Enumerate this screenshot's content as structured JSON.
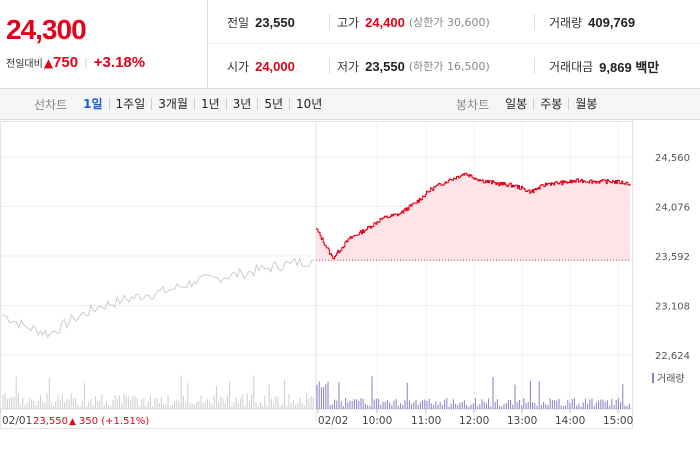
{
  "quote": {
    "price": "24,300",
    "change_label": "전일대비",
    "change_arrow": "▲",
    "change_amount": "750",
    "change_pct": "+3.18%"
  },
  "stats": {
    "prev_close_label": "전일",
    "prev_close": "23,550",
    "high_label": "고가",
    "high": "24,400",
    "upper_limit": "(상한가 30,600)",
    "volume_label": "거래량",
    "volume": "409,769",
    "open_label": "시가",
    "open": "24,000",
    "low_label": "저가",
    "low": "23,550",
    "lower_limit": "(하한가 16,500)",
    "amount_label": "거래대금",
    "amount": "9,869 백만"
  },
  "toolbar": {
    "line_chart_label": "선차트",
    "line_ranges": [
      "1일",
      "1주일",
      "3개월",
      "1년",
      "3년",
      "5년",
      "10년"
    ],
    "active_range": "1일",
    "candle_chart_label": "봉차트",
    "candle_ranges": [
      "일봉",
      "주봉",
      "월봉"
    ]
  },
  "chart_data": {
    "type": "line",
    "colors": {
      "today": "#e3001b",
      "today_fill": "#fde4e6",
      "previous": "#cccccc",
      "volume_prev": "#cccccc",
      "volume_today": "#8e7cc3"
    },
    "y_ticks": [
      "24,560",
      "24,076",
      "23,592",
      "23,108",
      "22,624"
    ],
    "y_tick_values": [
      24560,
      24076,
      23592,
      23108,
      22624
    ],
    "ylim": [
      22624,
      24560
    ],
    "x_ticks": [
      "02/01",
      "02/02",
      "10:00",
      "11:00",
      "12:00",
      "13:00",
      "14:00",
      "15:00"
    ],
    "reference_line": 23550,
    "volume_legend": "거래량",
    "prev_day_summary": {
      "date": "02/01",
      "price": "23,550",
      "arrow": "▲",
      "change": "350",
      "pct": "(+1.51%)"
    },
    "series": [
      {
        "day": "02/01",
        "x": [
          "09:00",
          "09:30",
          "10:00",
          "10:30",
          "11:00",
          "11:30",
          "12:00",
          "12:30",
          "13:00",
          "13:30",
          "14:00",
          "14:30",
          "15:00",
          "15:30"
        ],
        "values": [
          23020,
          22900,
          22830,
          22980,
          23090,
          23160,
          23210,
          23260,
          23340,
          23380,
          23420,
          23470,
          23520,
          23550
        ]
      },
      {
        "day": "02/02",
        "x": [
          "09:00",
          "09:20",
          "09:40",
          "10:00",
          "10:20",
          "10:40",
          "11:00",
          "11:20",
          "11:40",
          "12:00",
          "12:20",
          "12:40",
          "13:00",
          "13:20",
          "13:40",
          "14:00",
          "14:20",
          "14:40",
          "15:00",
          "15:20"
        ],
        "values": [
          23860,
          23570,
          23760,
          23850,
          23960,
          24000,
          24110,
          24250,
          24330,
          24400,
          24330,
          24300,
          24280,
          24220,
          24300,
          24310,
          24330,
          24320,
          24320,
          24300
        ]
      }
    ]
  }
}
